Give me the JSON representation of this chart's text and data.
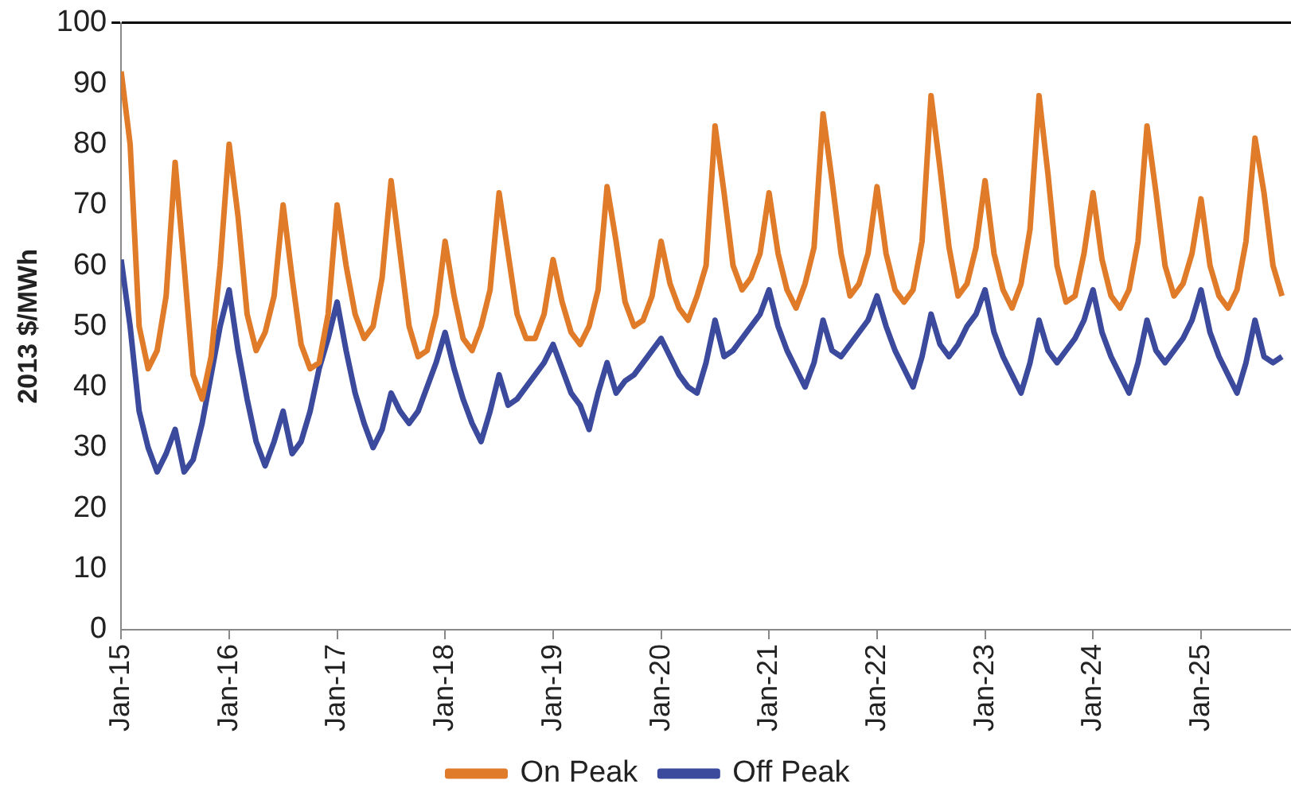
{
  "chart_data": {
    "type": "line",
    "ylabel": "2013 $/MWh",
    "ylim": [
      0,
      100
    ],
    "yticks": [
      0,
      10,
      20,
      30,
      40,
      50,
      60,
      70,
      80,
      90,
      100
    ],
    "xlim": [
      "2015-01",
      "2025-11"
    ],
    "xticks": [
      {
        "value": "2015-01",
        "label": "Jan-15"
      },
      {
        "value": "2016-01",
        "label": "Jan-16"
      },
      {
        "value": "2017-01",
        "label": "Jan-17"
      },
      {
        "value": "2018-01",
        "label": "Jan-18"
      },
      {
        "value": "2019-01",
        "label": "Jan-19"
      },
      {
        "value": "2020-01",
        "label": "Jan-20"
      },
      {
        "value": "2021-01",
        "label": "Jan-21"
      },
      {
        "value": "2022-01",
        "label": "Jan-22"
      },
      {
        "value": "2023-01",
        "label": "Jan-23"
      },
      {
        "value": "2024-01",
        "label": "Jan-24"
      },
      {
        "value": "2025-01",
        "label": "Jan-25"
      }
    ],
    "x": [
      "2015-01",
      "2015-02",
      "2015-03",
      "2015-04",
      "2015-05",
      "2015-06",
      "2015-07",
      "2015-08",
      "2015-09",
      "2015-10",
      "2015-11",
      "2015-12",
      "2016-01",
      "2016-02",
      "2016-03",
      "2016-04",
      "2016-05",
      "2016-06",
      "2016-07",
      "2016-08",
      "2016-09",
      "2016-10",
      "2016-11",
      "2016-12",
      "2017-01",
      "2017-02",
      "2017-03",
      "2017-04",
      "2017-05",
      "2017-06",
      "2017-07",
      "2017-08",
      "2017-09",
      "2017-10",
      "2017-11",
      "2017-12",
      "2018-01",
      "2018-02",
      "2018-03",
      "2018-04",
      "2018-05",
      "2018-06",
      "2018-07",
      "2018-08",
      "2018-09",
      "2018-10",
      "2018-11",
      "2018-12",
      "2019-01",
      "2019-02",
      "2019-03",
      "2019-04",
      "2019-05",
      "2019-06",
      "2019-07",
      "2019-08",
      "2019-09",
      "2019-10",
      "2019-11",
      "2019-12",
      "2020-01",
      "2020-02",
      "2020-03",
      "2020-04",
      "2020-05",
      "2020-06",
      "2020-07",
      "2020-08",
      "2020-09",
      "2020-10",
      "2020-11",
      "2020-12",
      "2021-01",
      "2021-02",
      "2021-03",
      "2021-04",
      "2021-05",
      "2021-06",
      "2021-07",
      "2021-08",
      "2021-09",
      "2021-10",
      "2021-11",
      "2021-12",
      "2022-01",
      "2022-02",
      "2022-03",
      "2022-04",
      "2022-05",
      "2022-06",
      "2022-07",
      "2022-08",
      "2022-09",
      "2022-10",
      "2022-11",
      "2022-12",
      "2023-01",
      "2023-02",
      "2023-03",
      "2023-04",
      "2023-05",
      "2023-06",
      "2023-07",
      "2023-08",
      "2023-09",
      "2023-10",
      "2023-11",
      "2023-12",
      "2024-01",
      "2024-02",
      "2024-03",
      "2024-04",
      "2024-05",
      "2024-06",
      "2024-07",
      "2024-08",
      "2024-09",
      "2024-10",
      "2024-11",
      "2024-12",
      "2025-01",
      "2025-02",
      "2025-03",
      "2025-04",
      "2025-05",
      "2025-06",
      "2025-07",
      "2025-08",
      "2025-09",
      "2025-10"
    ],
    "series": [
      {
        "name": "On Peak",
        "color": "#e07b2a",
        "values": [
          92,
          80,
          50,
          43,
          46,
          55,
          77,
          60,
          42,
          38,
          45,
          60,
          80,
          68,
          52,
          46,
          49,
          55,
          70,
          58,
          47,
          43,
          44,
          52,
          70,
          60,
          52,
          48,
          50,
          58,
          74,
          62,
          50,
          45,
          46,
          52,
          64,
          55,
          48,
          46,
          50,
          56,
          72,
          62,
          52,
          48,
          48,
          52,
          61,
          54,
          49,
          47,
          50,
          56,
          73,
          64,
          54,
          50,
          51,
          55,
          64,
          57,
          53,
          51,
          55,
          60,
          83,
          72,
          60,
          56,
          58,
          62,
          72,
          62,
          56,
          53,
          57,
          63,
          85,
          74,
          62,
          55,
          57,
          62,
          73,
          62,
          56,
          54,
          56,
          64,
          88,
          76,
          63,
          55,
          57,
          63,
          74,
          62,
          56,
          53,
          57,
          66,
          88,
          75,
          60,
          54,
          55,
          62,
          72,
          61,
          55,
          53,
          56,
          64,
          83,
          72,
          60,
          55,
          57,
          62,
          71,
          60,
          55,
          53,
          56,
          64,
          81,
          72,
          60,
          55
        ]
      },
      {
        "name": "Off Peak",
        "color": "#3b4a9c",
        "values": [
          61,
          50,
          36,
          30,
          26,
          29,
          33,
          26,
          28,
          34,
          42,
          50,
          56,
          46,
          38,
          31,
          27,
          31,
          36,
          29,
          31,
          36,
          43,
          48,
          54,
          46,
          39,
          34,
          30,
          33,
          39,
          36,
          34,
          36,
          40,
          44,
          49,
          43,
          38,
          34,
          31,
          36,
          42,
          37,
          38,
          40,
          42,
          44,
          47,
          43,
          39,
          37,
          33,
          39,
          44,
          39,
          41,
          42,
          44,
          46,
          48,
          45,
          42,
          40,
          39,
          44,
          51,
          45,
          46,
          48,
          50,
          52,
          56,
          50,
          46,
          43,
          40,
          44,
          51,
          46,
          45,
          47,
          49,
          51,
          55,
          50,
          46,
          43,
          40,
          45,
          52,
          47,
          45,
          47,
          50,
          52,
          56,
          49,
          45,
          42,
          39,
          44,
          51,
          46,
          44,
          46,
          48,
          51,
          56,
          49,
          45,
          42,
          39,
          44,
          51,
          46,
          44,
          46,
          48,
          51,
          56,
          49,
          45,
          42,
          39,
          44,
          51,
          45,
          44,
          45
        ]
      }
    ],
    "legend": "bottom",
    "grid": false,
    "marker": "none",
    "line_style": "solid"
  }
}
